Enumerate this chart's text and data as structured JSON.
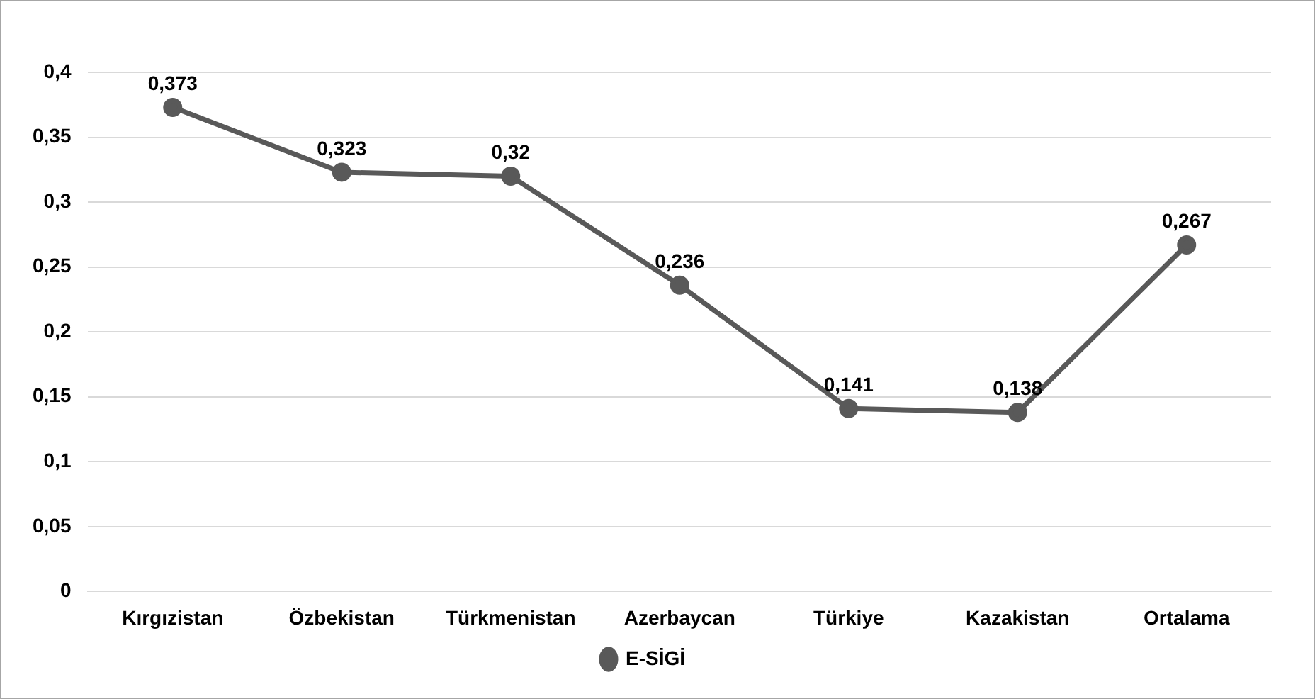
{
  "chart_data": {
    "type": "line",
    "categories": [
      "Kırgızistan",
      "Özbekistan",
      "Türkmenistan",
      "Azerbaycan",
      "Türkiye",
      "Kazakistan",
      "Ortalama"
    ],
    "series": [
      {
        "name": "E-SİGİ",
        "color": "#595959",
        "values": [
          0.373,
          0.323,
          0.32,
          0.236,
          0.141,
          0.138,
          0.267
        ],
        "value_labels": [
          "0,373",
          "0,323",
          "0,32",
          "0,236",
          "0,141",
          "0,138",
          "0,267"
        ]
      }
    ],
    "ylim": [
      0,
      0.4
    ],
    "yticks": [
      {
        "value": 0,
        "label": "0"
      },
      {
        "value": 0.05,
        "label": "0,05"
      },
      {
        "value": 0.1,
        "label": "0,1"
      },
      {
        "value": 0.15,
        "label": "0,15"
      },
      {
        "value": 0.2,
        "label": "0,2"
      },
      {
        "value": 0.25,
        "label": "0,25"
      },
      {
        "value": 0.3,
        "label": "0,3"
      },
      {
        "value": 0.35,
        "label": "0,35"
      },
      {
        "value": 0.4,
        "label": "0,4"
      }
    ],
    "grid": "y",
    "legend": "bottom",
    "marker": "circle",
    "line_style": "solid"
  }
}
